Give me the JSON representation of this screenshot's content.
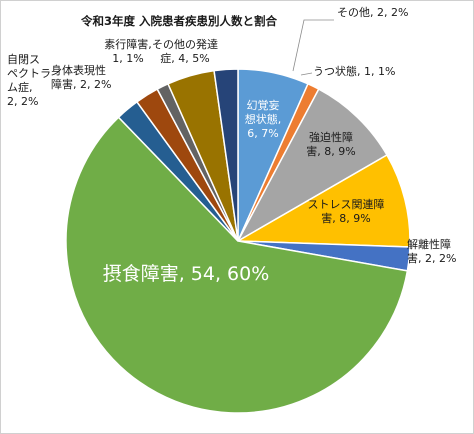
{
  "chart_data": {
    "type": "pie",
    "title": "令和3年度 入院患者疾患別人数と割合",
    "slices": [
      {
        "name": "幻覚妄想状態",
        "value": 6,
        "percent": "7%",
        "color": "#5b9bd5",
        "label_lines": [
          "幻覚妄",
          "想状態,",
          "6, 7%"
        ]
      },
      {
        "name": "うつ状態",
        "value": 1,
        "percent": "1%",
        "color": "#ed7d31",
        "label_lines": [
          "うつ状態, 1, 1%"
        ]
      },
      {
        "name": "強迫性障害",
        "value": 8,
        "percent": "9%",
        "color": "#a5a5a5",
        "label_lines": [
          "強迫性障",
          "害, 8, 9%"
        ]
      },
      {
        "name": "ストレス関連障害",
        "value": 8,
        "percent": "9%",
        "color": "#ffc000",
        "label_lines": [
          "ストレス関連障",
          "害, 8, 9%"
        ]
      },
      {
        "name": "解離性障害",
        "value": 2,
        "percent": "2%",
        "color": "#4472c4",
        "label_lines": [
          "解離性障",
          "害, 2, 2%"
        ]
      },
      {
        "name": "摂食障害",
        "value": 54,
        "percent": "60%",
        "color": "#70ad47",
        "label_lines": [
          "摂食障害, 54, 60%"
        ]
      },
      {
        "name": "自閉スペクトラム症",
        "value": 2,
        "percent": "2%",
        "color": "#255e91",
        "label_lines": [
          "自閉ス",
          "ペクトラ",
          "ム症,",
          "2, 2%"
        ]
      },
      {
        "name": "身体表現性障害",
        "value": 2,
        "percent": "2%",
        "color": "#9e480e",
        "label_lines": [
          "身体表現性",
          "障害, 2, 2%"
        ]
      },
      {
        "name": "素行障害",
        "value": 1,
        "percent": "1%",
        "color": "#636363",
        "label_lines": [
          "素行障害,",
          "1, 1%"
        ]
      },
      {
        "name": "その他の発達症",
        "value": 4,
        "percent": "5%",
        "color": "#997300",
        "label_lines": [
          "その他の発達",
          "症, 4, 5%"
        ]
      },
      {
        "name": "その他",
        "value": 2,
        "percent": "2%",
        "color": "#264478",
        "label_lines": [
          "その他, 2, 2%"
        ]
      }
    ]
  }
}
